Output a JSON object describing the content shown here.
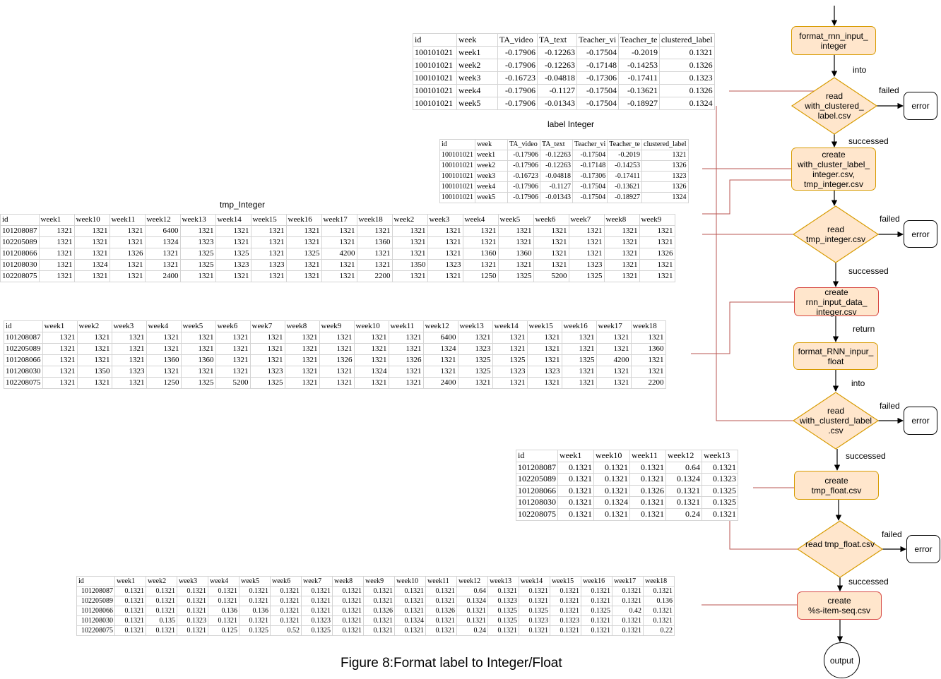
{
  "caption": "Figure 8:Format label to Integer/Float",
  "flow": {
    "format_rnn_input_integer": "format_rnn_input_\ninteger",
    "read_with_clustered_label": "read\nwith_clustered_\nlabel.csv",
    "create_with_cluster_label_integer": "create\nwith_cluster_label_\ninteger.csv,\ntmp_integer.csv",
    "read_tmp_integer": "read\ntmp_integer.csv",
    "create_rnn_input_data_integer": "create\nrnn_input_data_\ninteger.csv",
    "format_rnn_input_float": "format_RNN_inpur_\nfloat",
    "read_with_clusterd_label": "read\nwith_clusterd_label\n.csv",
    "create_tmp_float": "create\ntmp_float.csv",
    "read_tmp_float": "read\ntmp_float.csv",
    "create_item_seq": "create\n%s-item-seq.csv",
    "output": "output",
    "error": "error",
    "into": "into",
    "failed": "failed",
    "successed": "successed",
    "return": "return"
  },
  "labels": {
    "label_integer": "label Integer",
    "tmp_integer": "tmp_Integer"
  },
  "table1": {
    "headers": [
      "id",
      "week",
      "TA_video",
      "TA_text",
      "Teacher_vi",
      "Teacher_te",
      "clustered_label"
    ],
    "rows": [
      [
        "100101021",
        "week1",
        "-0.17906",
        "-0.12263",
        "-0.17504",
        "-0.2019",
        "0.1321"
      ],
      [
        "100101021",
        "week2",
        "-0.17906",
        "-0.12263",
        "-0.17148",
        "-0.14253",
        "0.1326"
      ],
      [
        "100101021",
        "week3",
        "-0.16723",
        "-0.04818",
        "-0.17306",
        "-0.17411",
        "0.1323"
      ],
      [
        "100101021",
        "week4",
        "-0.17906",
        "-0.1127",
        "-0.17504",
        "-0.13621",
        "0.1326"
      ],
      [
        "100101021",
        "week5",
        "-0.17906",
        "-0.01343",
        "-0.17504",
        "-0.18927",
        "0.1324"
      ]
    ]
  },
  "table2": {
    "headers": [
      "id",
      "week",
      "TA_video",
      "TA_text",
      "Teacher_vi",
      "Teacher_te",
      "clustered_label"
    ],
    "rows": [
      [
        "100101021",
        "week1",
        "-0.17906",
        "-0.12263",
        "-0.17504",
        "-0.2019",
        "1321"
      ],
      [
        "100101021",
        "week2",
        "-0.17906",
        "-0.12263",
        "-0.17148",
        "-0.14253",
        "1326"
      ],
      [
        "100101021",
        "week3",
        "-0.16723",
        "-0.04818",
        "-0.17306",
        "-0.17411",
        "1323"
      ],
      [
        "100101021",
        "week4",
        "-0.17906",
        "-0.1127",
        "-0.17504",
        "-0.13621",
        "1326"
      ],
      [
        "100101021",
        "week5",
        "-0.17906",
        "-0.01343",
        "-0.17504",
        "-0.18927",
        "1324"
      ]
    ]
  },
  "table3": {
    "headers": [
      "id",
      "week1",
      "week10",
      "week11",
      "week12",
      "week13",
      "week14",
      "week15",
      "week16",
      "week17",
      "week18",
      "week2",
      "week3",
      "week4",
      "week5",
      "week6",
      "week7",
      "week8",
      "week9"
    ],
    "rows": [
      [
        "101208087",
        "1321",
        "1321",
        "1321",
        "6400",
        "1321",
        "1321",
        "1321",
        "1321",
        "1321",
        "1321",
        "1321",
        "1321",
        "1321",
        "1321",
        "1321",
        "1321",
        "1321",
        "1321"
      ],
      [
        "102205089",
        "1321",
        "1321",
        "1321",
        "1324",
        "1323",
        "1321",
        "1321",
        "1321",
        "1321",
        "1360",
        "1321",
        "1321",
        "1321",
        "1321",
        "1321",
        "1321",
        "1321",
        "1321"
      ],
      [
        "101208066",
        "1321",
        "1321",
        "1326",
        "1321",
        "1325",
        "1325",
        "1321",
        "1325",
        "4200",
        "1321",
        "1321",
        "1321",
        "1360",
        "1360",
        "1321",
        "1321",
        "1321",
        "1326"
      ],
      [
        "101208030",
        "1321",
        "1324",
        "1321",
        "1321",
        "1325",
        "1323",
        "1323",
        "1321",
        "1321",
        "1321",
        "1350",
        "1323",
        "1321",
        "1321",
        "1321",
        "1323",
        "1321",
        "1321"
      ],
      [
        "102208075",
        "1321",
        "1321",
        "1321",
        "2400",
        "1321",
        "1321",
        "1321",
        "1321",
        "1321",
        "2200",
        "1321",
        "1321",
        "1250",
        "1325",
        "5200",
        "1325",
        "1321",
        "1321"
      ]
    ]
  },
  "table4": {
    "headers": [
      "id",
      "week1",
      "week2",
      "week3",
      "week4",
      "week5",
      "week6",
      "week7",
      "week8",
      "week9",
      "week10",
      "week11",
      "week12",
      "week13",
      "week14",
      "week15",
      "week16",
      "week17",
      "week18"
    ],
    "rows": [
      [
        "101208087",
        "1321",
        "1321",
        "1321",
        "1321",
        "1321",
        "1321",
        "1321",
        "1321",
        "1321",
        "1321",
        "1321",
        "6400",
        "1321",
        "1321",
        "1321",
        "1321",
        "1321",
        "1321"
      ],
      [
        "102205089",
        "1321",
        "1321",
        "1321",
        "1321",
        "1321",
        "1321",
        "1321",
        "1321",
        "1321",
        "1321",
        "1321",
        "1324",
        "1323",
        "1321",
        "1321",
        "1321",
        "1321",
        "1360"
      ],
      [
        "101208066",
        "1321",
        "1321",
        "1321",
        "1360",
        "1360",
        "1321",
        "1321",
        "1321",
        "1326",
        "1321",
        "1326",
        "1321",
        "1325",
        "1325",
        "1321",
        "1325",
        "4200",
        "1321"
      ],
      [
        "101208030",
        "1321",
        "1350",
        "1323",
        "1321",
        "1321",
        "1321",
        "1323",
        "1321",
        "1321",
        "1324",
        "1321",
        "1321",
        "1325",
        "1323",
        "1323",
        "1321",
        "1321",
        "1321"
      ],
      [
        "102208075",
        "1321",
        "1321",
        "1321",
        "1250",
        "1325",
        "5200",
        "1325",
        "1321",
        "1321",
        "1321",
        "1321",
        "2400",
        "1321",
        "1321",
        "1321",
        "1321",
        "1321",
        "2200"
      ]
    ]
  },
  "table5": {
    "headers": [
      "id",
      "week1",
      "week10",
      "week11",
      "week12",
      "week13"
    ],
    "rows": [
      [
        "101208087",
        "0.1321",
        "0.1321",
        "0.1321",
        "0.64",
        "0.1321"
      ],
      [
        "102205089",
        "0.1321",
        "0.1321",
        "0.1321",
        "0.1324",
        "0.1323"
      ],
      [
        "101208066",
        "0.1321",
        "0.1321",
        "0.1326",
        "0.1321",
        "0.1325"
      ],
      [
        "101208030",
        "0.1321",
        "0.1324",
        "0.1321",
        "0.1321",
        "0.1325"
      ],
      [
        "102208075",
        "0.1321",
        "0.1321",
        "0.1321",
        "0.24",
        "0.1321"
      ]
    ]
  },
  "table6": {
    "headers": [
      "id",
      "week1",
      "week2",
      "week3",
      "week4",
      "week5",
      "week6",
      "week7",
      "week8",
      "week9",
      "week10",
      "week11",
      "week12",
      "week13",
      "week14",
      "week15",
      "week16",
      "week17",
      "week18"
    ],
    "rows": [
      [
        "101208087",
        "0.1321",
        "0.1321",
        "0.1321",
        "0.1321",
        "0.1321",
        "0.1321",
        "0.1321",
        "0.1321",
        "0.1321",
        "0.1321",
        "0.1321",
        "0.64",
        "0.1321",
        "0.1321",
        "0.1321",
        "0.1321",
        "0.1321",
        "0.1321"
      ],
      [
        "102205089",
        "0.1321",
        "0.1321",
        "0.1321",
        "0.1321",
        "0.1321",
        "0.1321",
        "0.1321",
        "0.1321",
        "0.1321",
        "0.1321",
        "0.1321",
        "0.1324",
        "0.1323",
        "0.1321",
        "0.1321",
        "0.1321",
        "0.1321",
        "0.136"
      ],
      [
        "101208066",
        "0.1321",
        "0.1321",
        "0.1321",
        "0.136",
        "0.136",
        "0.1321",
        "0.1321",
        "0.1321",
        "0.1326",
        "0.1321",
        "0.1326",
        "0.1321",
        "0.1325",
        "0.1325",
        "0.1321",
        "0.1325",
        "0.42",
        "0.1321"
      ],
      [
        "101208030",
        "0.1321",
        "0.135",
        "0.1323",
        "0.1321",
        "0.1321",
        "0.1321",
        "0.1323",
        "0.1321",
        "0.1321",
        "0.1324",
        "0.1321",
        "0.1321",
        "0.1325",
        "0.1323",
        "0.1323",
        "0.1321",
        "0.1321",
        "0.1321"
      ],
      [
        "102208075",
        "0.1321",
        "0.1321",
        "0.1321",
        "0.125",
        "0.1325",
        "0.52",
        "0.1325",
        "0.1321",
        "0.1321",
        "0.1321",
        "0.1321",
        "0.24",
        "0.1321",
        "0.1321",
        "0.1321",
        "0.1321",
        "0.1321",
        "0.22"
      ]
    ]
  }
}
